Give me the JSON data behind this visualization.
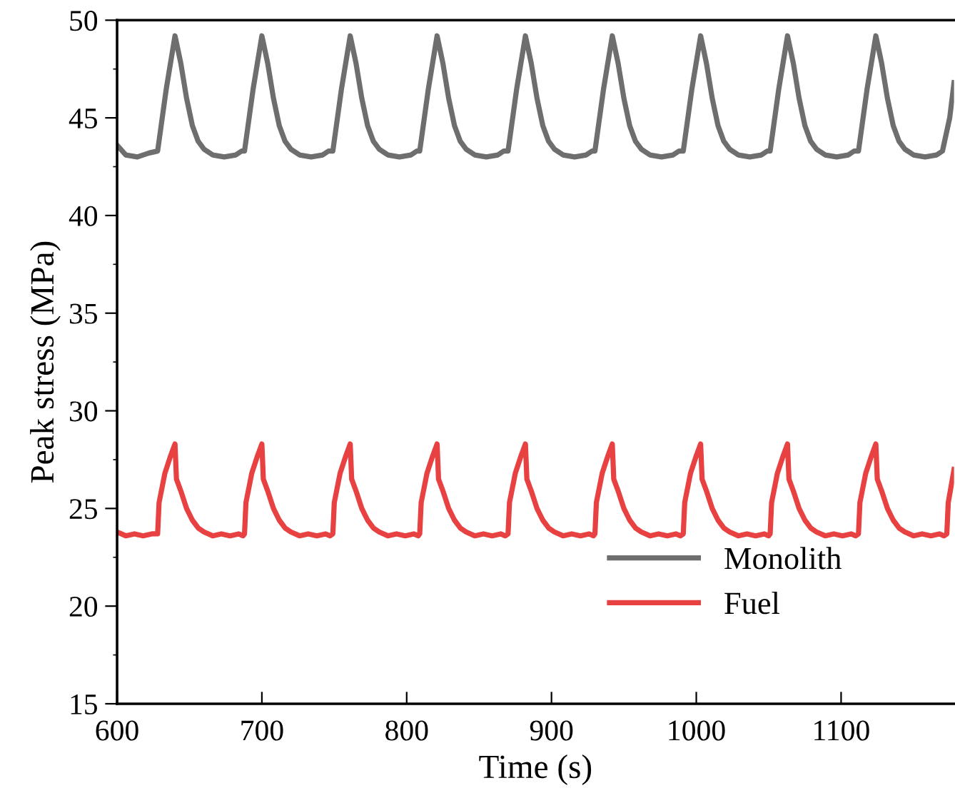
{
  "chart_data": {
    "type": "line",
    "xlabel": "Time (s)",
    "ylabel": "Peak stress (MPa)",
    "xlim": [
      600,
      1178
    ],
    "xticks": [
      600,
      700,
      800,
      900,
      1000,
      1100
    ],
    "ylim": [
      15,
      50
    ],
    "yticks": [
      15,
      20,
      25,
      30,
      35,
      40,
      45,
      50
    ],
    "grid": false,
    "legend": "bottom right",
    "marker": "none",
    "line_style": "solid",
    "series": [
      {
        "name": "Monolith",
        "color": "#6e6e6e",
        "x": [
          600,
          606,
          614,
          622,
          628,
          634,
          640,
          644,
          648,
          652,
          656,
          660,
          666,
          674,
          682,
          686,
          688,
          694,
          700,
          704,
          708,
          712,
          716,
          720,
          726,
          734,
          742,
          746,
          749,
          755,
          761,
          765,
          769,
          773,
          777,
          781,
          787,
          795,
          803,
          807,
          809,
          815,
          821,
          825,
          829,
          833,
          837,
          841,
          847,
          855,
          863,
          867,
          870,
          876,
          882,
          886,
          890,
          894,
          898,
          902,
          908,
          916,
          924,
          928,
          930,
          936,
          942,
          946,
          950,
          954,
          958,
          962,
          968,
          976,
          984,
          988,
          991,
          997,
          1003,
          1007,
          1011,
          1015,
          1019,
          1023,
          1029,
          1037,
          1045,
          1049,
          1051,
          1057,
          1063,
          1067,
          1071,
          1075,
          1079,
          1083,
          1089,
          1097,
          1105,
          1109,
          1112,
          1118,
          1124,
          1128,
          1132,
          1136,
          1140,
          1144,
          1150,
          1158,
          1166,
          1170,
          1175,
          1178
        ],
        "values": [
          43.6,
          43.1,
          43.0,
          43.2,
          43.3,
          46.5,
          49.2,
          47.8,
          46.0,
          44.6,
          43.8,
          43.4,
          43.1,
          43.0,
          43.1,
          43.3,
          43.3,
          46.5,
          49.2,
          47.8,
          46.0,
          44.6,
          43.8,
          43.4,
          43.1,
          43.0,
          43.1,
          43.3,
          43.3,
          46.5,
          49.2,
          47.8,
          46.0,
          44.6,
          43.8,
          43.4,
          43.1,
          43.0,
          43.1,
          43.3,
          43.3,
          46.5,
          49.2,
          47.8,
          46.0,
          44.6,
          43.8,
          43.4,
          43.1,
          43.0,
          43.1,
          43.3,
          43.3,
          46.5,
          49.2,
          47.8,
          46.0,
          44.6,
          43.8,
          43.4,
          43.1,
          43.0,
          43.1,
          43.3,
          43.3,
          46.5,
          49.2,
          47.8,
          46.0,
          44.6,
          43.8,
          43.4,
          43.1,
          43.0,
          43.1,
          43.3,
          43.3,
          46.5,
          49.2,
          47.8,
          46.0,
          44.6,
          43.8,
          43.4,
          43.1,
          43.0,
          43.1,
          43.3,
          43.3,
          46.5,
          49.2,
          47.8,
          46.0,
          44.6,
          43.8,
          43.4,
          43.1,
          43.0,
          43.1,
          43.3,
          43.3,
          46.5,
          49.2,
          47.8,
          46.0,
          44.6,
          43.8,
          43.4,
          43.1,
          43.0,
          43.1,
          43.3,
          45.0,
          46.8
        ]
      },
      {
        "name": "Fuel",
        "color": "#e84142",
        "x": [
          600,
          606,
          612,
          618,
          624,
          628,
          629,
          633,
          637,
          640,
          641,
          644,
          648,
          652,
          656,
          660,
          666,
          672,
          678,
          684,
          687,
          688,
          689,
          693,
          697,
          700,
          701,
          704,
          708,
          712,
          716,
          720,
          726,
          732,
          738,
          744,
          747,
          749,
          750,
          754,
          758,
          761,
          762,
          765,
          769,
          773,
          777,
          781,
          787,
          793,
          799,
          805,
          808,
          809,
          810,
          814,
          818,
          821,
          822,
          825,
          829,
          833,
          837,
          841,
          847,
          853,
          859,
          865,
          868,
          870,
          871,
          875,
          879,
          882,
          883,
          886,
          890,
          894,
          898,
          902,
          908,
          914,
          920,
          926,
          929,
          930,
          931,
          935,
          939,
          942,
          943,
          946,
          950,
          954,
          958,
          962,
          968,
          974,
          980,
          986,
          989,
          991,
          992,
          996,
          1000,
          1003,
          1004,
          1007,
          1011,
          1015,
          1019,
          1023,
          1029,
          1035,
          1041,
          1047,
          1050,
          1051,
          1052,
          1056,
          1060,
          1063,
          1064,
          1067,
          1071,
          1075,
          1079,
          1083,
          1089,
          1095,
          1101,
          1107,
          1110,
          1112,
          1113,
          1117,
          1121,
          1124,
          1125,
          1128,
          1132,
          1136,
          1140,
          1144,
          1150,
          1156,
          1162,
          1168,
          1171,
          1173,
          1174,
          1178
        ],
        "values": [
          23.8,
          23.6,
          23.7,
          23.6,
          23.7,
          23.7,
          25.3,
          26.8,
          27.7,
          28.3,
          26.5,
          25.9,
          25.0,
          24.4,
          24.0,
          23.8,
          23.6,
          23.7,
          23.6,
          23.7,
          23.6,
          23.7,
          25.3,
          26.8,
          27.7,
          28.3,
          26.5,
          25.9,
          25.0,
          24.4,
          24.0,
          23.8,
          23.6,
          23.7,
          23.6,
          23.7,
          23.6,
          23.7,
          25.3,
          26.8,
          27.7,
          28.3,
          26.5,
          25.9,
          25.0,
          24.4,
          24.0,
          23.8,
          23.6,
          23.7,
          23.6,
          23.7,
          23.6,
          23.7,
          25.3,
          26.8,
          27.7,
          28.3,
          26.5,
          25.9,
          25.0,
          24.4,
          24.0,
          23.8,
          23.6,
          23.7,
          23.6,
          23.7,
          23.6,
          23.7,
          25.3,
          26.8,
          27.7,
          28.3,
          26.5,
          25.9,
          25.0,
          24.4,
          24.0,
          23.8,
          23.6,
          23.7,
          23.6,
          23.7,
          23.6,
          23.7,
          25.3,
          26.8,
          27.7,
          28.3,
          26.5,
          25.9,
          25.0,
          24.4,
          24.0,
          23.8,
          23.6,
          23.7,
          23.6,
          23.7,
          23.6,
          23.7,
          25.3,
          26.8,
          27.7,
          28.3,
          26.5,
          25.9,
          25.0,
          24.4,
          24.0,
          23.8,
          23.6,
          23.7,
          23.6,
          23.7,
          23.6,
          23.7,
          25.3,
          26.8,
          27.7,
          28.3,
          26.5,
          25.9,
          25.0,
          24.4,
          24.0,
          23.8,
          23.6,
          23.7,
          23.6,
          23.7,
          23.6,
          23.7,
          25.3,
          26.8,
          27.7,
          28.3,
          26.5,
          25.9,
          25.0,
          24.4,
          24.0,
          23.8,
          23.6,
          23.7,
          23.6,
          23.7,
          23.6,
          23.7,
          25.3,
          27.0
        ]
      }
    ]
  }
}
